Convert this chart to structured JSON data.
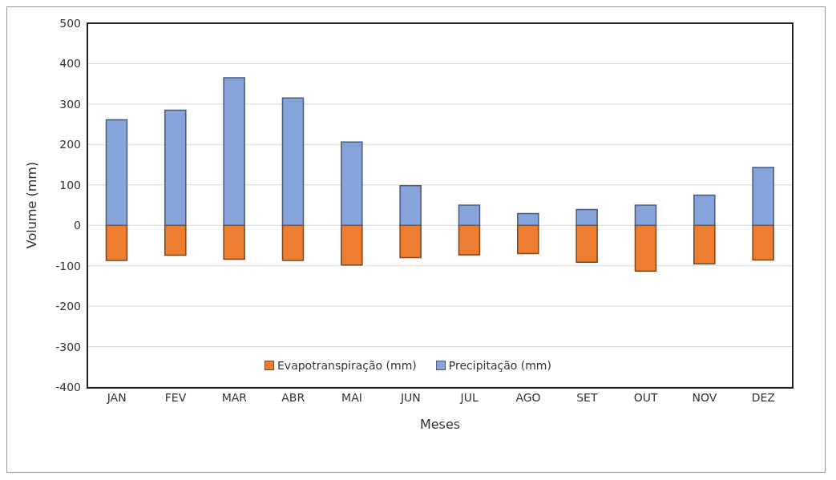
{
  "chart_data": {
    "type": "bar",
    "xlabel": "Meses",
    "ylabel": "Volume (mm)",
    "categories": [
      "JAN",
      "FEV",
      "MAR",
      "ABR",
      "MAI",
      "JUN",
      "JUL",
      "AGO",
      "SET",
      "OUT",
      "NOV",
      "DEZ"
    ],
    "series": [
      {
        "name": "Evapotranspiração (mm)",
        "color": "#ed7d31",
        "values": [
          -87,
          -74,
          -84,
          -87,
          -98,
          -80,
          -73,
          -70,
          -91,
          -113,
          -95,
          -86
        ]
      },
      {
        "name": "Precipitação (mm)",
        "color": "#86a3da",
        "values": [
          261,
          285,
          365,
          315,
          206,
          98,
          50,
          29,
          39,
          50,
          75,
          143
        ]
      }
    ],
    "stacked": true,
    "ylim": [
      -400,
      500
    ],
    "yticks": [
      -400,
      -300,
      -200,
      -100,
      0,
      100,
      200,
      300,
      400,
      500
    ],
    "grid": "y",
    "legend": "bottom"
  }
}
